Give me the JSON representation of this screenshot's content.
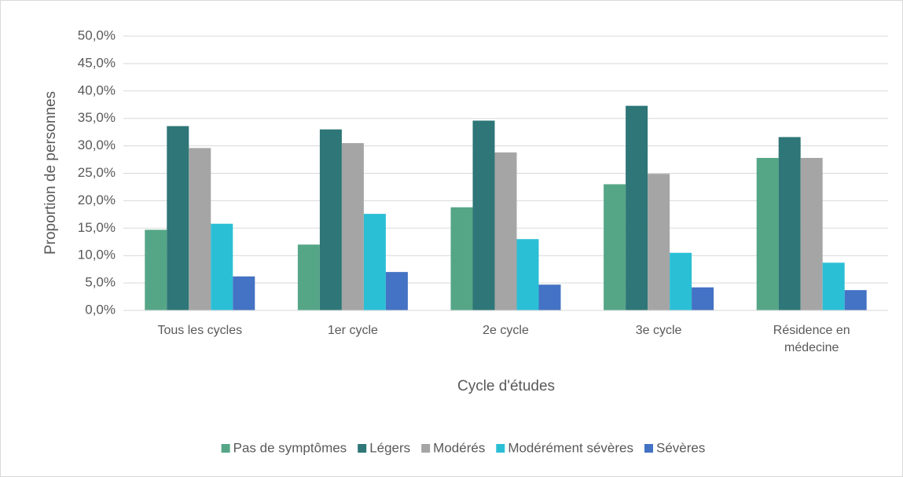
{
  "chart_data": {
    "type": "bar",
    "x_label": "Cycle d'études",
    "y_label": "Proportion de personnes",
    "categories": [
      "Tous les cycles",
      "1er cycle",
      "2e cycle",
      "3e cycle",
      "Résidence en médecine"
    ],
    "series": [
      {
        "name": "Pas de symptômes",
        "color": "#55a687",
        "values": [
          14.7,
          12.0,
          18.8,
          23.0,
          27.8
        ]
      },
      {
        "name": "Légers",
        "color": "#2e7677",
        "values": [
          33.6,
          33.0,
          34.6,
          37.3,
          31.6
        ]
      },
      {
        "name": "Modérés",
        "color": "#a5a5a5",
        "values": [
          29.6,
          30.5,
          28.8,
          24.9,
          27.8
        ]
      },
      {
        "name": "Modérément sévères",
        "color": "#2bbfd6",
        "values": [
          15.8,
          17.6,
          13.0,
          10.5,
          8.7
        ]
      },
      {
        "name": "Sévères",
        "color": "#4472c4",
        "values": [
          6.2,
          7.0,
          4.7,
          4.2,
          3.7
        ]
      }
    ],
    "ylim": [
      0,
      50
    ],
    "yticks": [
      {
        "value": 0,
        "label": "0,0%"
      },
      {
        "value": 5,
        "label": "5,0%"
      },
      {
        "value": 10,
        "label": "10,0%"
      },
      {
        "value": 15,
        "label": "15,0%"
      },
      {
        "value": 20,
        "label": "20,0%"
      },
      {
        "value": 25,
        "label": "25,0%"
      },
      {
        "value": 30,
        "label": "30,0%"
      },
      {
        "value": 35,
        "label": "35,0%"
      },
      {
        "value": 40,
        "label": "40,0%"
      },
      {
        "value": 45,
        "label": "45,0%"
      },
      {
        "value": 50,
        "label": "50,0%"
      }
    ],
    "grid": true,
    "legend": "bottom"
  }
}
